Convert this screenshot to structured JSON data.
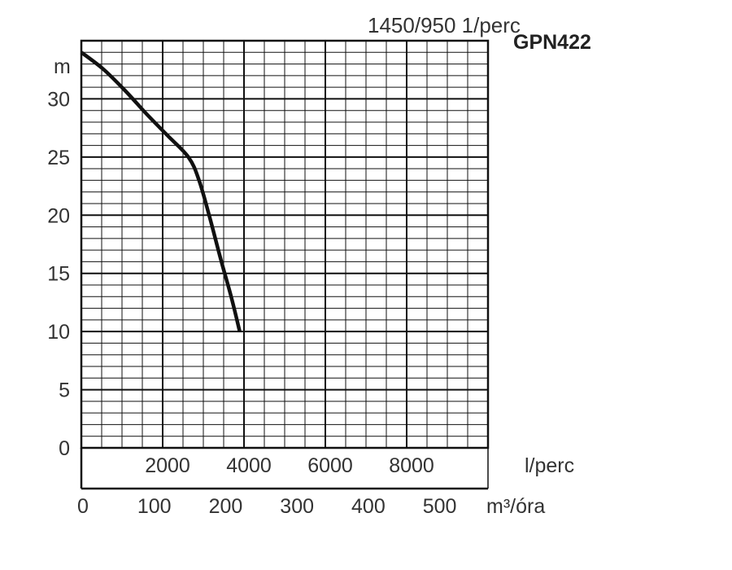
{
  "chart_data": {
    "type": "line",
    "title": "1450/950 1/perc",
    "model": "GPN422",
    "ylabel": "m",
    "x_unit_top": "l/perc",
    "x_unit_bottom": "m³/óra",
    "ylim": [
      0,
      35
    ],
    "xlim_m3h": [
      0,
      570
    ],
    "grid": true,
    "y_ticks": [
      "0",
      "5",
      "10",
      "15",
      "20",
      "25",
      "30"
    ],
    "x_ticks_lpm": [
      "2000",
      "4000",
      "6000",
      "8000"
    ],
    "x_ticks_m3h": [
      "0",
      "100",
      "200",
      "300",
      "400",
      "500"
    ],
    "series": [
      {
        "x": [
          0,
          30,
          60,
          90,
          120,
          150,
          165,
          180,
          195,
          210,
          222
        ],
        "y": [
          34.0,
          32.6,
          30.8,
          28.8,
          26.9,
          25.0,
          23.0,
          19.8,
          16.3,
          13.0,
          10.0
        ]
      }
    ],
    "colors": {
      "curve": "#111111",
      "grid": "#111111",
      "text": "#333333"
    }
  }
}
